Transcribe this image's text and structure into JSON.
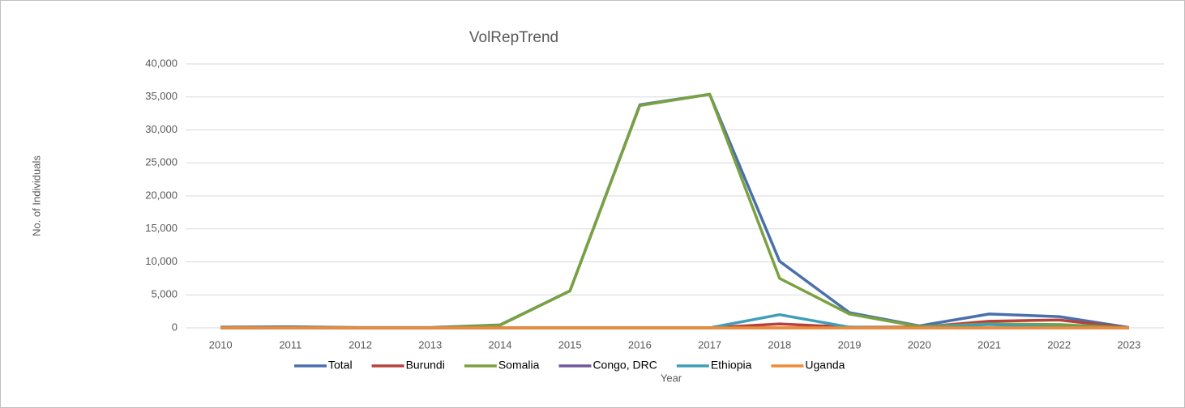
{
  "chart_data": {
    "type": "line",
    "title": "VolRepTrend",
    "x_label": "Year",
    "y_label": "No. of Individuals",
    "categories": [
      "2010",
      "2011",
      "2012",
      "2013",
      "2014",
      "2015",
      "2016",
      "2017",
      "2018",
      "2019",
      "2020",
      "2021",
      "2022",
      "2023"
    ],
    "series": [
      {
        "name": "Total",
        "color": "#4a70ab",
        "values": [
          100,
          150,
          50,
          50,
          450,
          5600,
          33800,
          35400,
          10100,
          2300,
          300,
          2100,
          1700,
          50
        ]
      },
      {
        "name": "Burundi",
        "color": "#b8413c",
        "values": [
          0,
          0,
          0,
          0,
          0,
          0,
          0,
          0,
          600,
          100,
          100,
          1000,
          1200,
          0
        ]
      },
      {
        "name": "Somalia",
        "color": "#7aa140",
        "values": [
          0,
          50,
          0,
          0,
          400,
          5600,
          33700,
          35400,
          7500,
          2100,
          200,
          600,
          500,
          0
        ]
      },
      {
        "name": "Congo, DRC",
        "color": "#73579c",
        "values": [
          0,
          0,
          0,
          0,
          0,
          0,
          0,
          0,
          0,
          0,
          0,
          0,
          0,
          0
        ]
      },
      {
        "name": "Ethiopia",
        "color": "#3f9fb8",
        "values": [
          0,
          0,
          0,
          0,
          0,
          0,
          0,
          0,
          2000,
          100,
          0,
          500,
          100,
          0
        ]
      },
      {
        "name": "Uganda",
        "color": "#ef8a35",
        "values": [
          0,
          0,
          0,
          0,
          0,
          0,
          0,
          0,
          0,
          0,
          0,
          0,
          0,
          0
        ]
      }
    ],
    "ylim": [
      0,
      40000
    ],
    "yticks": [
      0,
      {
        "value": 5000,
        "label": "5,000"
      },
      {
        "value": 10000,
        "label": "10,000"
      },
      {
        "value": 15000,
        "label": "15,000"
      },
      {
        "value": 20000,
        "label": "20,000"
      },
      {
        "value": 25000,
        "label": "25,000"
      },
      {
        "value": 30000,
        "label": "30,000"
      },
      {
        "value": 35000,
        "label": "35,000"
      },
      {
        "value": 40000,
        "label": "40,000"
      }
    ],
    "grid": true,
    "legend": "bottom"
  }
}
